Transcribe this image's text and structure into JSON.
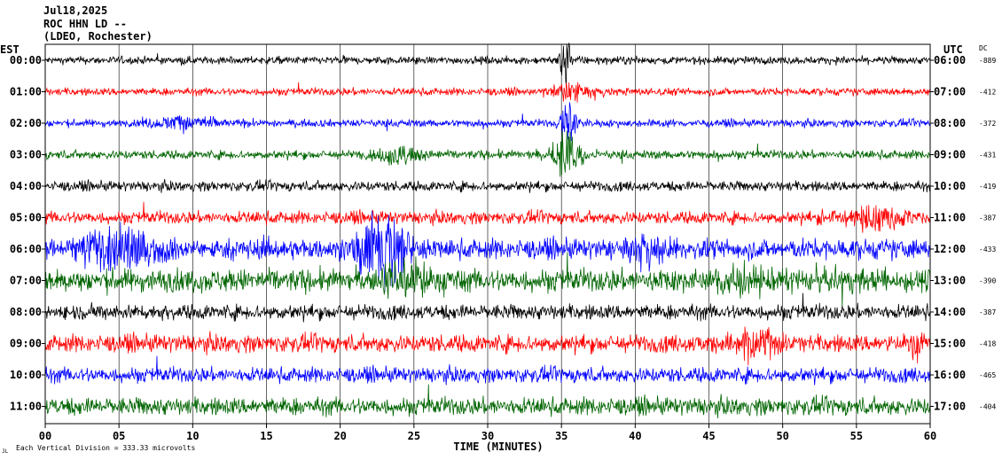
{
  "header": {
    "date": "Jul18,2025",
    "station": "ROC HHN LD --",
    "network": "(LDEO, Rochester)"
  },
  "left_label": "EST",
  "right_label": "UTC",
  "dc_label": "DC",
  "footer": {
    "scale_note": "Each Vertical Division =  333.33 microvolts",
    "corner_mark": "JL"
  },
  "chart_data": {
    "type": "line",
    "xlabel": "TIME (MINUTES)",
    "xlim": [
      0,
      60
    ],
    "x_ticks": [
      "00",
      "05",
      "10",
      "15",
      "20",
      "25",
      "30",
      "35",
      "40",
      "45",
      "50",
      "55",
      "60"
    ],
    "trace_colors": [
      "#000000",
      "#ff0000",
      "#0000ff",
      "#006400"
    ],
    "rows": [
      {
        "est": "00:00",
        "utc": "06:00",
        "dc": "-889",
        "color": "#000000",
        "noise": 3,
        "events": [
          {
            "t": 35.3,
            "amp": 30,
            "dur": 0.4
          }
        ]
      },
      {
        "est": "01:00",
        "utc": "07:00",
        "dc": "-412",
        "color": "#ff0000",
        "noise": 3,
        "events": [
          {
            "t": 35.5,
            "amp": 10,
            "dur": 1.5
          }
        ]
      },
      {
        "est": "02:00",
        "utc": "08:00",
        "dc": "-372",
        "color": "#0000ff",
        "noise": 3,
        "events": [
          {
            "t": 9.5,
            "amp": 8,
            "dur": 2.5
          },
          {
            "t": 35.5,
            "amp": 22,
            "dur": 0.6
          }
        ]
      },
      {
        "est": "03:00",
        "utc": "09:00",
        "dc": "-431",
        "color": "#006400",
        "noise": 3.5,
        "events": [
          {
            "t": 35.4,
            "amp": 28,
            "dur": 1.0
          },
          {
            "t": 24.0,
            "amp": 12,
            "dur": 1.5
          }
        ]
      },
      {
        "est": "04:00",
        "utc": "10:00",
        "dc": "-419",
        "color": "#000000",
        "noise": 4,
        "events": []
      },
      {
        "est": "05:00",
        "utc": "11:00",
        "dc": "-387",
        "color": "#ff0000",
        "noise": 5,
        "events": [
          {
            "t": 56.5,
            "amp": 14,
            "dur": 2.0
          }
        ]
      },
      {
        "est": "06:00",
        "utc": "12:00",
        "dc": "-433",
        "color": "#0000ff",
        "noise": 8,
        "events": [
          {
            "t": 23.0,
            "amp": 40,
            "dur": 2.0
          },
          {
            "t": 5.0,
            "amp": 25,
            "dur": 3.0
          },
          {
            "t": 41.0,
            "amp": 14,
            "dur": 1.5
          }
        ]
      },
      {
        "est": "07:00",
        "utc": "13:00",
        "dc": "-390",
        "color": "#006400",
        "noise": 9,
        "events": [
          {
            "t": 24.5,
            "amp": 22,
            "dur": 2.0
          },
          {
            "t": 47.0,
            "amp": 14,
            "dur": 3.0
          }
        ]
      },
      {
        "est": "08:00",
        "utc": "14:00",
        "dc": "-387",
        "color": "#000000",
        "noise": 6,
        "events": []
      },
      {
        "est": "09:00",
        "utc": "15:00",
        "dc": "-418",
        "color": "#ff0000",
        "noise": 7,
        "events": [
          {
            "t": 48.0,
            "amp": 18,
            "dur": 2.0
          },
          {
            "t": 59.0,
            "amp": 14,
            "dur": 1.0
          }
        ]
      },
      {
        "est": "10:00",
        "utc": "16:00",
        "dc": "-465",
        "color": "#0000ff",
        "noise": 6,
        "events": []
      },
      {
        "est": "11:00",
        "utc": "17:00",
        "dc": "-404",
        "color": "#006400",
        "noise": 7,
        "events": []
      }
    ]
  }
}
